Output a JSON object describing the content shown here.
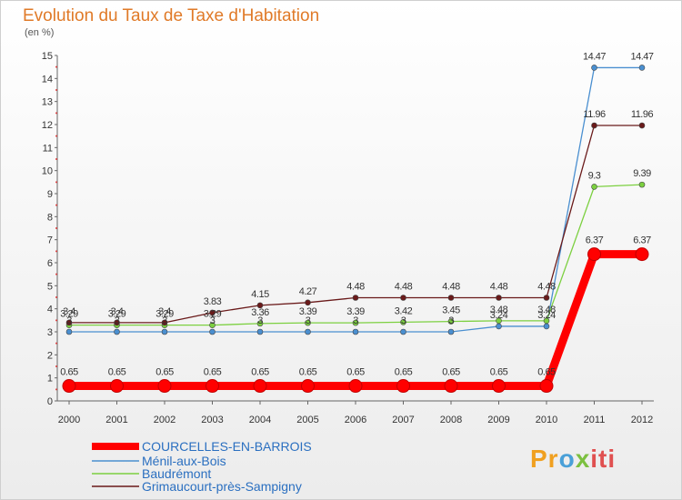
{
  "chart_data": {
    "type": "line",
    "title": "Evolution du Taux de Taxe d'Habitation",
    "ylabel": "(en %)",
    "xlabel": "",
    "ylim": [
      0,
      15
    ],
    "yticks": [
      0,
      1,
      2,
      3,
      4,
      5,
      6,
      7,
      8,
      9,
      10,
      11,
      12,
      13,
      14,
      15
    ],
    "grid": false,
    "legend_position": "bottom-left",
    "x": [
      "2000",
      "2001",
      "2002",
      "2003",
      "2004",
      "2005",
      "2006",
      "2007",
      "2008",
      "2009",
      "2010",
      "2011",
      "2012"
    ],
    "series": [
      {
        "name": "COURCELLES-EN-BARROIS",
        "color": "#ff0000",
        "values": [
          0.65,
          0.65,
          0.65,
          0.65,
          0.65,
          0.65,
          0.65,
          0.65,
          0.65,
          0.65,
          0.65,
          6.37,
          6.37
        ],
        "labels": [
          "0.65",
          "0.65",
          "0.65",
          "0.65",
          "0.65",
          "0.65",
          "0.65",
          "0.65",
          "0.65",
          "0.65",
          "0.65",
          "6.37",
          "6.37"
        ]
      },
      {
        "name": "Ménil-aux-Bois",
        "color": "#4a8fd0",
        "values": [
          3,
          3,
          3,
          3,
          3,
          3,
          3,
          3,
          3,
          3.24,
          3.24,
          14.47,
          14.47
        ],
        "labels": [
          "3",
          "3",
          "3",
          "3",
          "3",
          "3",
          "3",
          "3",
          "3",
          "3.24",
          "3.24",
          "14.47",
          "14.47"
        ]
      },
      {
        "name": "Baudrémont",
        "color": "#7cd040",
        "values": [
          3.29,
          3.29,
          3.29,
          3.29,
          3.36,
          3.39,
          3.39,
          3.42,
          3.45,
          3.48,
          3.48,
          9.3,
          9.39
        ],
        "labels": [
          "3.29",
          "3.29",
          "3.29",
          "3.29",
          "3.36",
          "3.39",
          "3.39",
          "3.42",
          "3.45",
          "3.48",
          "3.48",
          "9.3",
          "9.39"
        ]
      },
      {
        "name": "Grimaucourt-près-Sampigny",
        "color": "#6a1a1a",
        "values": [
          3.4,
          3.4,
          3.4,
          3.83,
          4.15,
          4.27,
          4.48,
          4.48,
          4.48,
          4.48,
          4.48,
          11.96,
          11.96
        ],
        "labels": [
          "3.4",
          "3.4",
          "3.4",
          "3.83",
          "4.15",
          "4.27",
          "4.48",
          "4.48",
          "4.48",
          "4.48",
          "4.48",
          "11.96",
          "11.96"
        ]
      }
    ]
  },
  "brand": {
    "logo_letters": [
      "Pr",
      "o",
      "x",
      "iti"
    ]
  }
}
